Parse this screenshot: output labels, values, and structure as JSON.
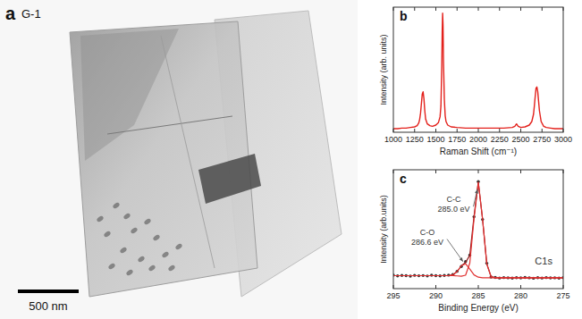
{
  "image": {
    "label": "a",
    "title": "G-1",
    "scale_bar": "500 nm"
  },
  "chart_data": [
    {
      "type": "line",
      "label": "b",
      "x_label": "Raman Shift (cm⁻¹)",
      "y_label": "Intensity (arb. units)",
      "xlim": [
        1000,
        3000
      ],
      "xticks": [
        1000,
        1250,
        1500,
        1750,
        2000,
        2250,
        2500,
        2750,
        3000
      ],
      "ylim": [
        0,
        1.05
      ],
      "tick_labels": "x",
      "x": [
        1000,
        1050,
        1100,
        1150,
        1200,
        1250,
        1280,
        1300,
        1310,
        1320,
        1330,
        1340,
        1350,
        1360,
        1370,
        1380,
        1400,
        1430,
        1460,
        1500,
        1530,
        1550,
        1560,
        1570,
        1575,
        1580,
        1585,
        1590,
        1600,
        1610,
        1620,
        1640,
        1680,
        1750,
        1850,
        2000,
        2150,
        2300,
        2400,
        2430,
        2450,
        2470,
        2500,
        2550,
        2600,
        2630,
        2650,
        2660,
        2670,
        2680,
        2690,
        2700,
        2710,
        2720,
        2740,
        2770,
        2800,
        2850,
        2900,
        2950,
        3000
      ],
      "series": [
        {
          "color": "#e3211c",
          "line_style": "solid",
          "values": [
            0.03,
            0.03,
            0.035,
            0.035,
            0.04,
            0.045,
            0.055,
            0.08,
            0.11,
            0.16,
            0.24,
            0.32,
            0.34,
            0.28,
            0.18,
            0.11,
            0.07,
            0.055,
            0.05,
            0.06,
            0.08,
            0.13,
            0.22,
            0.55,
            0.85,
            1.0,
            0.9,
            0.6,
            0.28,
            0.14,
            0.09,
            0.06,
            0.045,
            0.04,
            0.035,
            0.035,
            0.035,
            0.035,
            0.04,
            0.05,
            0.07,
            0.05,
            0.04,
            0.045,
            0.06,
            0.09,
            0.15,
            0.22,
            0.3,
            0.37,
            0.38,
            0.34,
            0.26,
            0.18,
            0.09,
            0.05,
            0.04,
            0.035,
            0.03,
            0.03,
            0.03
          ]
        }
      ]
    },
    {
      "type": "line",
      "label": "c",
      "x_label": "Binding Energy (eV)",
      "y_label": "Intensity (arb.units)",
      "xlim": [
        295,
        275
      ],
      "xticks": [
        295,
        290,
        285,
        280,
        275
      ],
      "ylim": [
        0,
        1.1
      ],
      "tick_labels": "x",
      "x": [
        295,
        294.5,
        294,
        293.5,
        293,
        292.5,
        292,
        291.5,
        291,
        290.5,
        290,
        289.5,
        289,
        288.5,
        288,
        287.5,
        287,
        286.5,
        286,
        285.5,
        285,
        284.5,
        284,
        283.5,
        283,
        282.5,
        282,
        281.5,
        281,
        280.5,
        280,
        279.5,
        279,
        278.5,
        278,
        277.5,
        277,
        276.5,
        276,
        275.5,
        275
      ],
      "series": [
        {
          "type": "scatter",
          "marker": "circle",
          "color": "#333333",
          "values": [
            0.125,
            0.118,
            0.122,
            0.12,
            0.116,
            0.123,
            0.119,
            0.121,
            0.117,
            0.124,
            0.12,
            0.118,
            0.122,
            0.125,
            0.13,
            0.16,
            0.205,
            0.25,
            0.31,
            0.665,
            0.99,
            0.64,
            0.235,
            0.108,
            0.103,
            0.098,
            0.102,
            0.1,
            0.097,
            0.101,
            0.099,
            0.103,
            0.1,
            0.096,
            0.101,
            0.098,
            0.102,
            0.099,
            0.1,
            0.097,
            0.101
          ]
        },
        {
          "type": "line",
          "line_style": "solid",
          "color": "#8b1a1a",
          "values": [
            0.12,
            0.12,
            0.12,
            0.12,
            0.12,
            0.12,
            0.12,
            0.12,
            0.12,
            0.12,
            0.12,
            0.12,
            0.12,
            0.12,
            0.128,
            0.157,
            0.211,
            0.242,
            0.309,
            0.671,
            0.986,
            0.645,
            0.228,
            0.112,
            0.1,
            0.1,
            0.1,
            0.1,
            0.1,
            0.1,
            0.1,
            0.1,
            0.1,
            0.1,
            0.1,
            0.1,
            0.1,
            0.1,
            0.1,
            0.1,
            0.1
          ]
        },
        {
          "type": "line",
          "line_style": "solid",
          "color": "#e03030",
          "values": [
            0.12,
            0.12,
            0.12,
            0.12,
            0.12,
            0.12,
            0.12,
            0.12,
            0.12,
            0.12,
            0.12,
            0.12,
            0.12,
            0.12,
            0.12,
            0.118,
            0.115,
            0.124,
            0.236,
            0.649,
            0.983,
            0.645,
            0.228,
            0.112,
            0.1,
            0.1,
            0.1,
            0.1,
            0.1,
            0.1,
            0.1,
            0.1,
            0.1,
            0.1,
            0.1,
            0.1,
            0.1,
            0.1,
            0.1,
            0.1,
            0.1
          ]
        },
        {
          "type": "line",
          "line_style": "solid",
          "color": "#e03030",
          "values": [
            0.12,
            0.12,
            0.12,
            0.12,
            0.12,
            0.12,
            0.12,
            0.12,
            0.12,
            0.12,
            0.12,
            0.12,
            0.12,
            0.12,
            0.128,
            0.157,
            0.211,
            0.23,
            0.181,
            0.127,
            0.106,
            0.101,
            0.1,
            0.1,
            0.1,
            0.1,
            0.1,
            0.1,
            0.1,
            0.1,
            0.1,
            0.1,
            0.1,
            0.1,
            0.1,
            0.1,
            0.1,
            0.1,
            0.1,
            0.1,
            0.1
          ]
        }
      ],
      "annotations": [
        {
          "lines": [
            "C-C",
            "285.0 eV"
          ],
          "x": 287.9,
          "y": 0.8,
          "target": [
            285.1,
            0.92
          ]
        },
        {
          "lines": [
            "C-O",
            "286.6 eV"
          ],
          "x": 291,
          "y": 0.5,
          "target": [
            286.8,
            0.25
          ]
        },
        {
          "lines": [
            "C1s"
          ],
          "x": 277.3,
          "y": 0.22
        }
      ]
    }
  ]
}
